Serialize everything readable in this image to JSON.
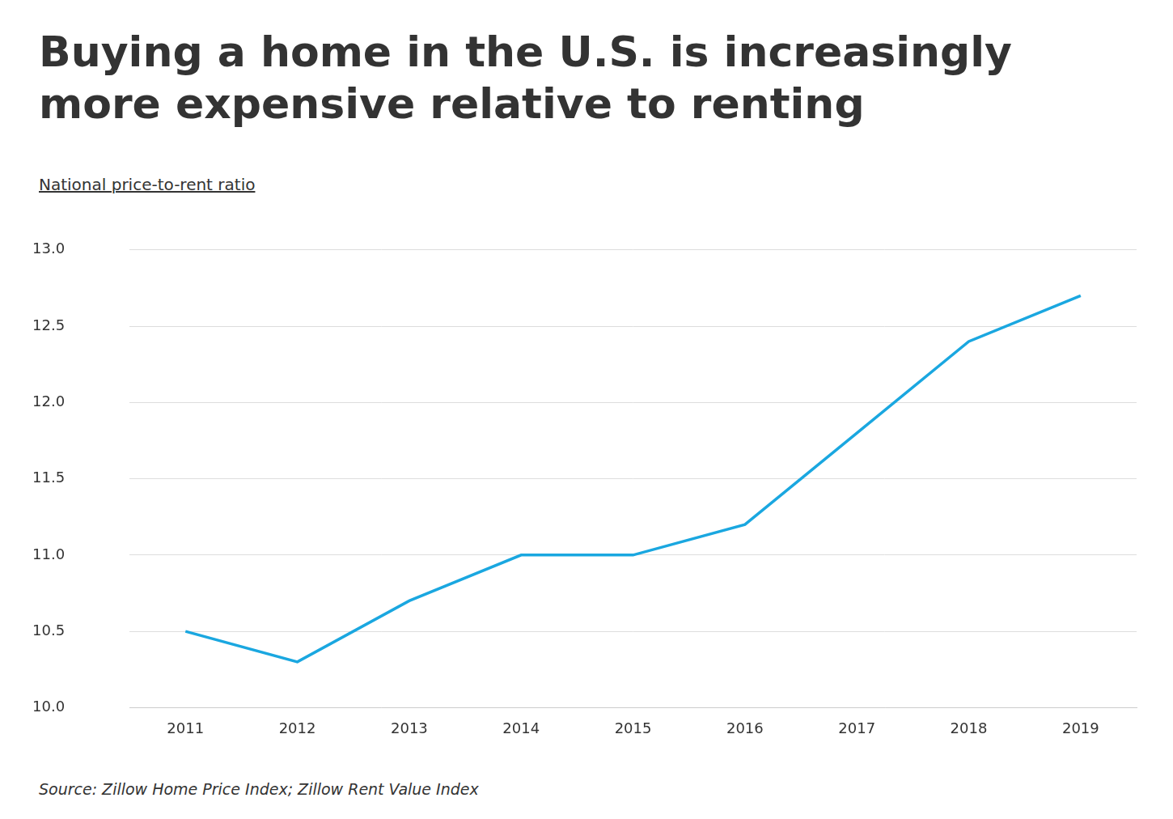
{
  "chart_data": {
    "type": "line",
    "title": "Buying a home in the U.S. is increasingly more expensive relative to renting",
    "ylabel": "National price-to-rent ratio",
    "source": "Source: Zillow Home Price Index; Zillow Rent Value Index",
    "categories": [
      "2011",
      "2012",
      "2013",
      "2014",
      "2015",
      "2016",
      "2017",
      "2018",
      "2019"
    ],
    "values": [
      10.5,
      10.3,
      10.7,
      11.0,
      11.0,
      11.2,
      11.8,
      12.4,
      12.7
    ],
    "color": "#1aa7e0",
    "ylim": [
      10,
      13
    ],
    "yticks": [
      {
        "value": 10,
        "label": "10.0"
      },
      10.5,
      {
        "value": 11,
        "label": "11.0"
      },
      11.5,
      {
        "value": 12,
        "label": "12.0"
      },
      12.5,
      {
        "value": 13,
        "label": "13.0"
      }
    ],
    "grid": true
  }
}
